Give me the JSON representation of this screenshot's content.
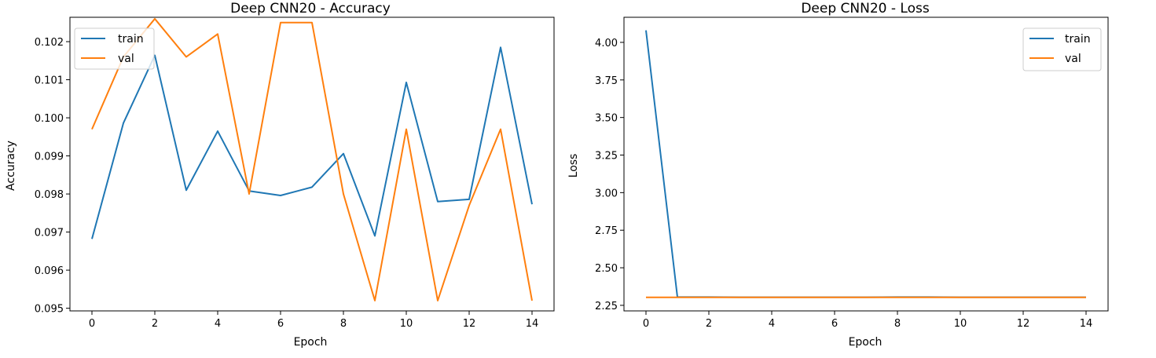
{
  "colors": {
    "train": "#1f77b4",
    "val": "#ff7f0e"
  },
  "chart_data": [
    {
      "type": "line",
      "title": "Deep CNN20 - Accuracy",
      "xlabel": "Epoch",
      "ylabel": "Accuracy",
      "xlim": [
        -0.7,
        14.7
      ],
      "ylim": [
        0.09493,
        0.10264
      ],
      "xticks": [
        0,
        2,
        4,
        6,
        8,
        10,
        12,
        14
      ],
      "xtick_labels": [
        "0",
        "2",
        "4",
        "6",
        "8",
        "10",
        "12",
        "14"
      ],
      "yticks": [
        0.095,
        0.096,
        0.097,
        0.098,
        0.099,
        0.1,
        0.101,
        0.102
      ],
      "ytick_labels": [
        "0.095",
        "0.096",
        "0.097",
        "0.098",
        "0.099",
        "0.100",
        "0.101",
        "0.102"
      ],
      "legend_position": "top-left",
      "x": [
        0,
        1,
        2,
        3,
        4,
        5,
        6,
        7,
        8,
        9,
        10,
        11,
        12,
        13,
        14
      ],
      "series": [
        {
          "name": "train",
          "color": "#1f77b4",
          "values": [
            0.09682,
            0.09986,
            0.10164,
            0.0981,
            0.09965,
            0.09808,
            0.09796,
            0.09818,
            0.09906,
            0.0969,
            0.10093,
            0.0978,
            0.09786,
            0.10185,
            0.09773
          ]
        },
        {
          "name": "val",
          "color": "#ff7f0e",
          "values": [
            0.0997,
            0.1016,
            0.1026,
            0.1016,
            0.1022,
            0.098,
            0.1025,
            0.1025,
            0.098,
            0.0952,
            0.0997,
            0.0952,
            0.0977,
            0.0997,
            0.0952
          ]
        }
      ]
    },
    {
      "type": "line",
      "title": "Deep CNN20 - Loss",
      "xlabel": "Epoch",
      "ylabel": "Loss",
      "xlim": [
        -0.7,
        14.7
      ],
      "ylim": [
        2.213,
        4.167
      ],
      "xticks": [
        0,
        2,
        4,
        6,
        8,
        10,
        12,
        14
      ],
      "xtick_labels": [
        "0",
        "2",
        "4",
        "6",
        "8",
        "10",
        "12",
        "14"
      ],
      "yticks": [
        2.25,
        2.5,
        2.75,
        3.0,
        3.25,
        3.5,
        3.75,
        4.0
      ],
      "ytick_labels": [
        "2.25",
        "2.50",
        "2.75",
        "3.00",
        "3.25",
        "3.50",
        "3.75",
        "4.00"
      ],
      "legend_position": "top-right",
      "x": [
        0,
        1,
        2,
        3,
        4,
        5,
        6,
        7,
        8,
        9,
        10,
        11,
        12,
        13,
        14
      ],
      "series": [
        {
          "name": "train",
          "color": "#1f77b4",
          "values": [
            4.08,
            2.305,
            2.305,
            2.304,
            2.304,
            2.304,
            2.304,
            2.304,
            2.305,
            2.305,
            2.304,
            2.304,
            2.304,
            2.304,
            2.304
          ]
        },
        {
          "name": "val",
          "color": "#ff7f0e",
          "values": [
            2.303,
            2.303,
            2.303,
            2.303,
            2.303,
            2.303,
            2.303,
            2.303,
            2.303,
            2.303,
            2.303,
            2.303,
            2.303,
            2.303,
            2.303
          ]
        }
      ]
    }
  ]
}
